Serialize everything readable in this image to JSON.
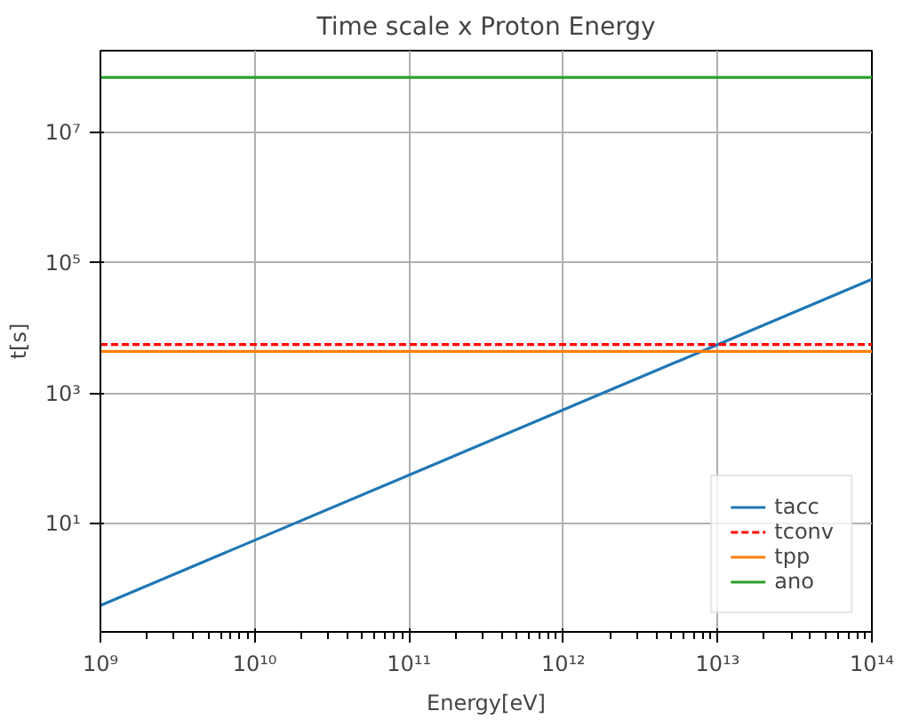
{
  "chart_data": {
    "type": "line",
    "title": "Time scale x Proton Energy",
    "xlabel": "Energy[eV]",
    "ylabel": "t[s]",
    "log": "xy",
    "x": [
      1000000000.0,
      100000000000000.0
    ],
    "series": [
      {
        "name": "tacc",
        "color": "#1f77b4",
        "values": [
          0.56,
          56000.0
        ],
        "line_style": "solid"
      },
      {
        "name": "tconv",
        "color": "#ff0000",
        "values": [
          5600,
          5600
        ],
        "line_style": "dashed"
      },
      {
        "name": "tpp",
        "color": "#ff7f0e",
        "values": [
          4400,
          4400
        ],
        "line_style": "solid"
      },
      {
        "name": "ano",
        "color": "#2ca02c",
        "values": [
          70000000.0,
          70000000.0
        ],
        "line_style": "solid"
      }
    ],
    "xlim": [
      1000000000.0,
      100000000000000.0
    ],
    "ylim": [
      0.22,
      180000000.0
    ],
    "xticks": [
      {
        "value": 1000000000.0,
        "label": "10⁹"
      },
      {
        "value": 10000000000.0,
        "label": "10¹⁰"
      },
      {
        "value": 100000000000.0,
        "label": "10¹¹"
      },
      {
        "value": 1000000000000.0,
        "label": "10¹²"
      },
      {
        "value": 10000000000000.0,
        "label": "10¹³"
      },
      {
        "value": 100000000000000.0,
        "label": "10¹⁴"
      }
    ],
    "yticks": [
      {
        "value": 10,
        "label": "10¹"
      },
      {
        "value": 1000,
        "label": "10³"
      },
      {
        "value": 100000,
        "label": "10⁵"
      },
      {
        "value": 10000000,
        "label": "10⁷"
      }
    ],
    "grid": true,
    "legend": "bottom right",
    "marker": "none"
  }
}
